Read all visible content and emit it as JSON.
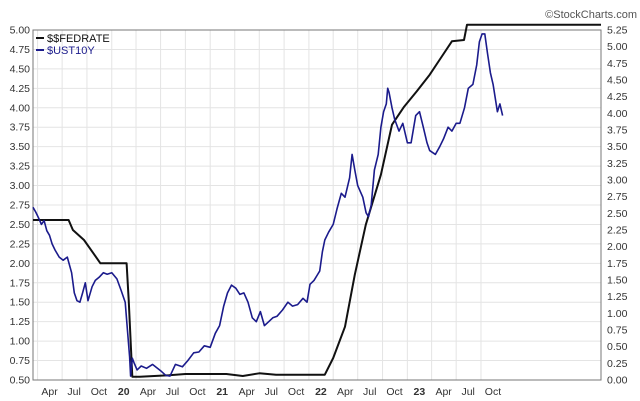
{
  "watermark": "©StockCharts.com",
  "chart_data": {
    "type": "line",
    "title": "",
    "grid": true,
    "legend_position": "top-left",
    "x_range": [
      "2018-03-15",
      "2023-12-20"
    ],
    "x_ticks": [
      {
        "label": "Apr",
        "date": "2018-04-01",
        "bold": false
      },
      {
        "label": "Jul",
        "date": "2018-07-01",
        "bold": false
      },
      {
        "label": "Oct",
        "date": "2018-10-01",
        "bold": false
      },
      {
        "label": "20",
        "date": "2019-01-01",
        "bold": true
      },
      {
        "label": "Apr",
        "date": "2019-04-01",
        "bold": false
      },
      {
        "label": "Jul",
        "date": "2019-07-01",
        "bold": false
      },
      {
        "label": "Oct",
        "date": "2019-10-01",
        "bold": false
      },
      {
        "label": "21",
        "date": "2020-01-01",
        "bold": true
      },
      {
        "label": "Apr",
        "date": "2020-04-01",
        "bold": false
      },
      {
        "label": "Jul",
        "date": "2020-07-01",
        "bold": false
      },
      {
        "label": "Oct",
        "date": "2020-10-01",
        "bold": false
      },
      {
        "label": "22",
        "date": "2021-01-01",
        "bold": true
      },
      {
        "label": "Apr",
        "date": "2021-04-01",
        "bold": false
      },
      {
        "label": "Jul",
        "date": "2021-07-01",
        "bold": false
      },
      {
        "label": "Oct",
        "date": "2021-10-01",
        "bold": false
      },
      {
        "label": "23",
        "date": "2022-01-01",
        "bold": true
      },
      {
        "label": "Apr",
        "date": "2022-04-01",
        "bold": false
      },
      {
        "label": "Jul",
        "date": "2022-07-01",
        "bold": false
      },
      {
        "label": "Oct",
        "date": "2022-10-01",
        "bold": false
      }
    ],
    "y_left": {
      "min": 0.5,
      "max": 5.0,
      "ticks": [
        "0.50",
        "0.75",
        "1.00",
        "1.25",
        "1.50",
        "1.75",
        "2.00",
        "2.25",
        "2.50",
        "2.75",
        "3.00",
        "3.25",
        "3.50",
        "3.75",
        "4.00",
        "4.25",
        "4.50",
        "4.75",
        "5.00"
      ]
    },
    "y_right": {
      "min": 0.0,
      "max": 5.25,
      "ticks": [
        "0.00",
        "0.25",
        "0.50",
        "0.75",
        "1.00",
        "1.25",
        "1.50",
        "1.75",
        "2.00",
        "2.25",
        "2.50",
        "2.75",
        "3.00",
        "3.25",
        "3.50",
        "3.75",
        "4.00",
        "4.25",
        "4.50",
        "4.75",
        "5.00",
        "5.25"
      ]
    },
    "series": [
      {
        "name": "$$FEDRATE",
        "color": "#111111",
        "axis": "right",
        "points": [
          [
            "2018-03-15",
            2.4
          ],
          [
            "2018-07-01",
            2.4
          ],
          [
            "2018-07-25",
            2.4
          ],
          [
            "2018-08-10",
            2.25
          ],
          [
            "2018-09-20",
            2.1
          ],
          [
            "2018-10-25",
            1.9
          ],
          [
            "2018-11-20",
            1.75
          ],
          [
            "2019-02-25",
            1.75
          ],
          [
            "2019-03-05",
            1.2
          ],
          [
            "2019-03-18",
            0.05
          ],
          [
            "2019-04-15",
            0.05
          ],
          [
            "2019-08-01",
            0.07
          ],
          [
            "2019-10-01",
            0.09
          ],
          [
            "2020-03-01",
            0.09
          ],
          [
            "2020-05-01",
            0.06
          ],
          [
            "2020-07-01",
            0.1
          ],
          [
            "2020-09-01",
            0.08
          ],
          [
            "2021-03-01",
            0.08
          ],
          [
            "2021-04-01",
            0.33
          ],
          [
            "2021-05-15",
            0.8
          ],
          [
            "2021-06-20",
            1.58
          ],
          [
            "2021-07-31",
            2.33
          ],
          [
            "2021-09-25",
            3.08
          ],
          [
            "2021-11-05",
            3.83
          ],
          [
            "2021-12-20",
            4.1
          ],
          [
            "2022-02-05",
            4.33
          ],
          [
            "2022-03-25",
            4.58
          ],
          [
            "2022-05-05",
            4.83
          ],
          [
            "2022-06-15",
            5.08
          ],
          [
            "2022-07-30",
            5.1
          ],
          [
            "2022-08-10",
            5.33
          ],
          [
            "2023-12-20",
            5.33
          ]
        ]
      },
      {
        "name": "$UST10Y",
        "color": "#1b1b8c",
        "axis": "left",
        "points": [
          [
            "2018-03-15",
            2.72
          ],
          [
            "2018-03-25",
            2.66
          ],
          [
            "2018-04-05",
            2.58
          ],
          [
            "2018-04-15",
            2.5
          ],
          [
            "2018-04-25",
            2.55
          ],
          [
            "2018-05-05",
            2.42
          ],
          [
            "2018-05-15",
            2.36
          ],
          [
            "2018-05-25",
            2.25
          ],
          [
            "2018-06-05",
            2.17
          ],
          [
            "2018-06-20",
            2.08
          ],
          [
            "2018-07-05",
            2.04
          ],
          [
            "2018-07-20",
            2.08
          ],
          [
            "2018-08-05",
            1.88
          ],
          [
            "2018-08-15",
            1.62
          ],
          [
            "2018-08-25",
            1.52
          ],
          [
            "2018-09-05",
            1.5
          ],
          [
            "2018-09-15",
            1.62
          ],
          [
            "2018-09-25",
            1.75
          ],
          [
            "2018-10-05",
            1.52
          ],
          [
            "2018-10-20",
            1.7
          ],
          [
            "2018-11-01",
            1.78
          ],
          [
            "2018-11-15",
            1.82
          ],
          [
            "2018-12-01",
            1.88
          ],
          [
            "2018-12-15",
            1.86
          ],
          [
            "2019-01-01",
            1.88
          ],
          [
            "2019-01-20",
            1.8
          ],
          [
            "2019-02-05",
            1.65
          ],
          [
            "2019-02-20",
            1.5
          ],
          [
            "2019-03-01",
            1.1
          ],
          [
            "2019-03-08",
            0.8
          ],
          [
            "2019-03-12",
            0.55
          ],
          [
            "2019-03-18",
            0.78
          ],
          [
            "2019-03-25",
            0.72
          ],
          [
            "2019-04-05",
            0.63
          ],
          [
            "2019-04-20",
            0.68
          ],
          [
            "2019-05-10",
            0.65
          ],
          [
            "2019-06-01",
            0.7
          ],
          [
            "2019-07-01",
            0.62
          ],
          [
            "2019-07-20",
            0.56
          ],
          [
            "2019-08-05",
            0.55
          ],
          [
            "2019-08-25",
            0.7
          ],
          [
            "2019-09-20",
            0.67
          ],
          [
            "2019-10-10",
            0.75
          ],
          [
            "2019-11-01",
            0.85
          ],
          [
            "2019-11-20",
            0.86
          ],
          [
            "2019-12-10",
            0.94
          ],
          [
            "2020-01-01",
            0.92
          ],
          [
            "2020-01-20",
            1.1
          ],
          [
            "2020-02-05",
            1.2
          ],
          [
            "2020-02-20",
            1.45
          ],
          [
            "2020-03-05",
            1.62
          ],
          [
            "2020-03-20",
            1.72
          ],
          [
            "2020-04-05",
            1.68
          ],
          [
            "2020-04-20",
            1.6
          ],
          [
            "2020-05-05",
            1.62
          ],
          [
            "2020-05-20",
            1.5
          ],
          [
            "2020-06-05",
            1.3
          ],
          [
            "2020-06-20",
            1.25
          ],
          [
            "2020-07-05",
            1.38
          ],
          [
            "2020-07-20",
            1.2
          ],
          [
            "2020-08-05",
            1.25
          ],
          [
            "2020-08-20",
            1.3
          ],
          [
            "2020-09-05",
            1.32
          ],
          [
            "2020-09-25",
            1.4
          ],
          [
            "2020-10-15",
            1.5
          ],
          [
            "2020-11-01",
            1.45
          ],
          [
            "2020-11-20",
            1.47
          ],
          [
            "2020-12-10",
            1.55
          ],
          [
            "2020-12-25",
            1.5
          ],
          [
            "2021-01-05",
            1.73
          ],
          [
            "2021-01-20",
            1.78
          ],
          [
            "2021-02-01",
            1.85
          ],
          [
            "2021-02-10",
            1.9
          ],
          [
            "2021-02-20",
            2.15
          ],
          [
            "2021-03-01",
            2.3
          ],
          [
            "2021-03-15",
            2.4
          ],
          [
            "2021-04-01",
            2.5
          ],
          [
            "2021-04-15",
            2.7
          ],
          [
            "2021-05-01",
            2.9
          ],
          [
            "2021-05-15",
            2.85
          ],
          [
            "2021-06-01",
            3.1
          ],
          [
            "2021-06-10",
            3.4
          ],
          [
            "2021-06-20",
            3.2
          ],
          [
            "2021-07-01",
            3.0
          ],
          [
            "2021-07-20",
            2.85
          ],
          [
            "2021-08-01",
            2.65
          ],
          [
            "2021-08-10",
            2.6
          ],
          [
            "2021-08-20",
            2.75
          ],
          [
            "2021-09-01",
            3.2
          ],
          [
            "2021-09-15",
            3.4
          ],
          [
            "2021-09-25",
            3.75
          ],
          [
            "2021-10-05",
            3.95
          ],
          [
            "2021-10-15",
            4.05
          ],
          [
            "2021-10-20",
            4.25
          ],
          [
            "2021-10-25",
            4.2
          ],
          [
            "2021-11-05",
            4.0
          ],
          [
            "2021-11-15",
            3.85
          ],
          [
            "2021-12-01",
            3.7
          ],
          [
            "2021-12-15",
            3.8
          ],
          [
            "2022-01-01",
            3.55
          ],
          [
            "2022-01-15",
            3.55
          ],
          [
            "2022-02-01",
            3.9
          ],
          [
            "2022-02-15",
            3.95
          ],
          [
            "2022-03-01",
            3.75
          ],
          [
            "2022-03-15",
            3.55
          ],
          [
            "2022-03-25",
            3.45
          ],
          [
            "2022-04-15",
            3.4
          ],
          [
            "2022-05-01",
            3.5
          ],
          [
            "2022-05-15",
            3.6
          ],
          [
            "2022-06-01",
            3.75
          ],
          [
            "2022-06-15",
            3.7
          ],
          [
            "2022-07-01",
            3.8
          ],
          [
            "2022-07-15",
            3.8
          ],
          [
            "2022-08-01",
            4.0
          ],
          [
            "2022-08-15",
            4.25
          ],
          [
            "2022-09-01",
            4.3
          ],
          [
            "2022-09-15",
            4.55
          ],
          [
            "2022-09-25",
            4.85
          ],
          [
            "2022-10-05",
            4.95
          ],
          [
            "2022-10-15",
            4.95
          ],
          [
            "2022-10-25",
            4.7
          ],
          [
            "2022-11-05",
            4.45
          ],
          [
            "2022-11-15",
            4.3
          ],
          [
            "2022-12-01",
            3.95
          ],
          [
            "2022-12-10",
            4.05
          ],
          [
            "2022-12-20",
            3.9
          ]
        ]
      }
    ]
  }
}
